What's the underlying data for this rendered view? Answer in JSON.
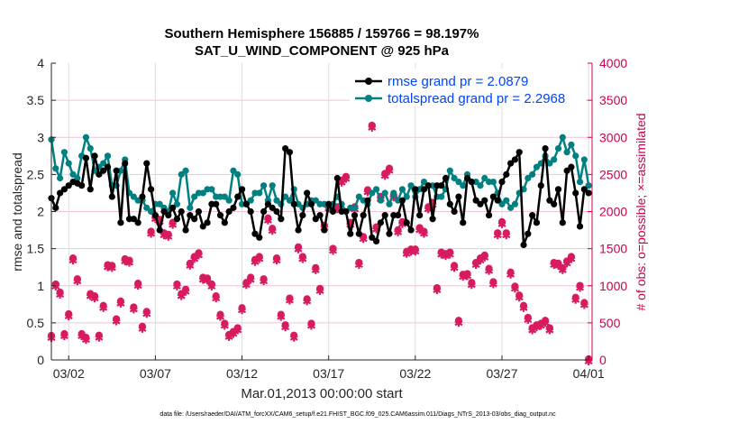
{
  "chart_data": {
    "type": "line",
    "title": [
      "Southern Hemisphere 156885 / 159766 = 98.197%",
      "SAT_U_WIND_COMPONENT @ 925 hPa"
    ],
    "xlabel": "Mar.01,2013 00:00:00 start",
    "ylabel": "rmse and totalspread",
    "ylabel_right": "# of obs: o=possible; ×=assimilated",
    "footer": "data file: /Users/raeder/DAI/ATM_forcXX/CAM6_setup/f.e21.FHIST_BGC.f09_025.CAM6assim.011/Diags_NTrS_2013-03/obs_diag_output.nc",
    "x_units": "days since Mar.01 00:00",
    "x_start": 0,
    "x_step": 0.25,
    "xlim": [
      0,
      31.2
    ],
    "xticks": [
      {
        "value": 1,
        "label": "03/02"
      },
      {
        "value": 6,
        "label": "03/07"
      },
      {
        "value": 11,
        "label": "03/12"
      },
      {
        "value": 16,
        "label": "03/17"
      },
      {
        "value": 21,
        "label": "03/22"
      },
      {
        "value": 26,
        "label": "03/27"
      },
      {
        "value": 31,
        "label": "04/01"
      }
    ],
    "ylim": [
      0,
      4
    ],
    "yticks": [
      "0",
      "0.5",
      "1",
      "1.5",
      "2",
      "2.5",
      "3",
      "3.5",
      "4"
    ],
    "ylim_right": [
      0,
      4000
    ],
    "yticks_right": [
      "0",
      "500",
      "1000",
      "1500",
      "2000",
      "2500",
      "3000",
      "3500",
      "4000"
    ],
    "grid": true,
    "legend": {
      "placement": "top-right",
      "entries": [
        "rmse grand pr = 2.0879",
        "totalspread grand pr = 2.2968"
      ]
    },
    "colors": {
      "rmse": "#000000",
      "totalspread": "#008080",
      "obs": "#d81b60",
      "legend_text": "#0044ff",
      "right_axis": "#cc0050"
    },
    "series": [
      {
        "name": "rmse",
        "axis": "left",
        "values": [
          2.18,
          2.05,
          2.25,
          2.3,
          2.35,
          2.4,
          2.38,
          2.35,
          2.72,
          2.3,
          2.75,
          2.5,
          2.55,
          2.6,
          2.2,
          2.55,
          1.85,
          2.65,
          1.9,
          1.9,
          1.85,
          2.2,
          2.65,
          2.3,
          1.95,
          1.75,
          2.0,
          1.95,
          2.05,
          1.9,
          2.0,
          1.75,
          1.95,
          1.9,
          2.0,
          1.8,
          1.85,
          2.1,
          2.1,
          1.95,
          1.85,
          2.0,
          2.05,
          2.2,
          2.3,
          2.1,
          2.0,
          1.7,
          1.65,
          2.0,
          2.1,
          2.05,
          2.0,
          1.9,
          2.85,
          2.8,
          2.1,
          1.75,
          1.95,
          2.25,
          2.1,
          1.9,
          1.95,
          1.75,
          2.1,
          2.0,
          2.45,
          2.0,
          2.0,
          1.7,
          1.95,
          1.7,
          1.95,
          2.15,
          1.65,
          1.6,
          1.85,
          1.95,
          1.7,
          1.95,
          1.95,
          2.15,
          1.85,
          1.75,
          2.3,
          1.95,
          2.3,
          2.35,
          1.9,
          2.35,
          2.35,
          2.45,
          2.1,
          2.0,
          2.2,
          1.85,
          2.45,
          2.4,
          2.15,
          2.1,
          2.15,
          1.95,
          2.2,
          2.15,
          2.4,
          2.5,
          2.65,
          2.7,
          2.8,
          1.55,
          1.7,
          1.95,
          1.85,
          2.35,
          2.85,
          2.15,
          2.1,
          2.3,
          1.85,
          2.55,
          2.6,
          2.25,
          1.8,
          2.3,
          2.25
        ]
      },
      {
        "name": "totalspread",
        "axis": "left",
        "values": [
          2.97,
          2.58,
          2.45,
          2.8,
          2.65,
          2.5,
          2.45,
          2.75,
          3.0,
          2.85,
          2.55,
          2.6,
          2.65,
          2.75,
          2.35,
          2.35,
          2.55,
          2.7,
          2.25,
          2.2,
          2.15,
          2.15,
          2.05,
          2.0,
          2.1,
          2.1,
          2.05,
          2.0,
          2.25,
          2.1,
          2.5,
          2.55,
          2.05,
          2.2,
          2.25,
          2.25,
          2.3,
          2.3,
          2.2,
          2.2,
          2.2,
          2.15,
          2.55,
          2.5,
          2.1,
          2.1,
          2.15,
          2.25,
          2.25,
          2.35,
          2.15,
          2.35,
          2.15,
          2.1,
          2.2,
          2.15,
          2.3,
          2.1,
          2.05,
          2.1,
          2.15,
          2.15,
          2.1,
          2.1,
          2.05,
          2.1,
          2.2,
          2.1,
          2.0,
          2.05,
          2.05,
          2.2,
          2.15,
          2.1,
          2.25,
          2.3,
          2.15,
          2.25,
          2.1,
          2.25,
          2.15,
          2.3,
          2.2,
          2.35,
          2.2,
          2.3,
          2.4,
          2.35,
          2.35,
          2.2,
          2.2,
          2.3,
          2.55,
          2.45,
          2.4,
          2.35,
          2.5,
          2.4,
          2.4,
          2.35,
          2.45,
          2.4,
          2.4,
          2.25,
          2.1,
          2.15,
          2.05,
          2.1,
          2.25,
          2.3,
          2.45,
          2.5,
          2.6,
          2.65,
          2.75,
          2.65,
          2.7,
          2.85,
          3.0,
          2.8,
          2.9,
          2.75,
          2.4,
          2.7,
          2.35
        ]
      },
      {
        "name": "obs_possible",
        "axis": "right",
        "values": [
          316,
          1010,
          900,
          340,
          608,
          1360,
          1080,
          340,
          290,
          880,
          850,
          320,
          720,
          1270,
          1260,
          540,
          780,
          1350,
          1330,
          700,
          1020,
          440,
          640,
          1720,
          1920,
          1880,
          1700,
          1680,
          1840,
          1010,
          880,
          940,
          1290,
          1380,
          1430,
          1100,
          1090,
          1010,
          850,
          600,
          480,
          330,
          370,
          420,
          690,
          1030,
          1100,
          1340,
          1380,
          1080,
          1900,
          1760,
          1360,
          600,
          460,
          820,
          320,
          1510,
          1380,
          810,
          480,
          1230,
          950,
          1800,
          2060,
          1490,
          2050,
          2410,
          2460,
          1840,
          2050,
          1300,
          1650,
          2280,
          3150,
          1780,
          2190,
          2500,
          2570,
          2210,
          1740,
          1850,
          1450,
          1480,
          1480,
          1770,
          1720,
          2050,
          2110,
          960,
          1440,
          1420,
          1440,
          1260,
          520,
          1140,
          1150,
          1030,
          1300,
          1360,
          1400,
          1220,
          1040,
          1700,
          1850,
          1700,
          1170,
          980,
          860,
          720,
          560,
          420,
          460,
          480,
          520,
          420,
          1300,
          1290,
          1230,
          1320,
          1380,
          830,
          990,
          760,
          0
        ]
      },
      {
        "name": "obs_assimilated",
        "axis": "right",
        "values": [
          316,
          1010,
          900,
          340,
          608,
          1360,
          1080,
          340,
          290,
          880,
          850,
          320,
          720,
          1270,
          1260,
          540,
          780,
          1350,
          1330,
          700,
          1020,
          440,
          640,
          1720,
          1920,
          1880,
          1700,
          1680,
          1840,
          1010,
          880,
          940,
          1290,
          1380,
          1430,
          1100,
          1090,
          1010,
          850,
          600,
          480,
          330,
          370,
          420,
          690,
          1030,
          1100,
          1340,
          1380,
          1080,
          1900,
          1760,
          1360,
          600,
          460,
          820,
          320,
          1510,
          1380,
          810,
          480,
          1230,
          950,
          1800,
          2060,
          1490,
          2050,
          2410,
          2460,
          1840,
          2050,
          1300,
          1650,
          2280,
          3150,
          1780,
          2190,
          2500,
          2570,
          2210,
          1740,
          1850,
          1450,
          1480,
          1480,
          1770,
          1720,
          2050,
          2110,
          960,
          1440,
          1420,
          1440,
          1260,
          520,
          1140,
          1150,
          1030,
          1300,
          1360,
          1400,
          1220,
          1040,
          1700,
          1850,
          1700,
          1170,
          980,
          860,
          720,
          560,
          420,
          460,
          480,
          520,
          420,
          1300,
          1290,
          1230,
          1320,
          1380,
          830,
          990,
          760,
          0
        ]
      }
    ]
  }
}
